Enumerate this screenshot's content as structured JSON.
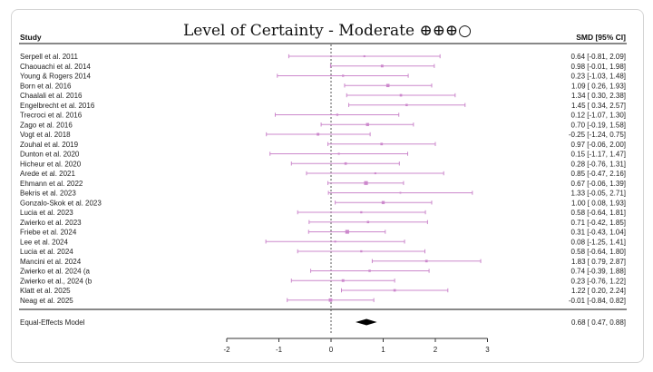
{
  "chart_data": {
    "type": "forest",
    "title": "Level of Certainty - Moderate ⊕⊕⊕○",
    "column_headers": {
      "study": "Study",
      "effect": "SMD [95% CI]"
    },
    "xlim": [
      -2,
      3
    ],
    "x_ticks": [
      -2,
      -1,
      0,
      1,
      2,
      3
    ],
    "reference_line": 0,
    "colors": {
      "marker": "#cc88cc",
      "axis": "#333333",
      "summary": "#000000"
    },
    "studies": [
      {
        "label": "Serpell et al. 2011",
        "smd": 0.64,
        "lower": -0.81,
        "upper": 2.09,
        "ci_text": "0.64 [-0.81, 2.09]",
        "weight": 1.0
      },
      {
        "label": "Chaouachi et al. 2014",
        "smd": 0.98,
        "lower": -0.01,
        "upper": 1.98,
        "ci_text": "0.98 [-0.01, 1.98]",
        "weight": 1.4
      },
      {
        "label": "Young & Rogers 2014",
        "smd": 0.23,
        "lower": -1.03,
        "upper": 1.48,
        "ci_text": "0.23 [-1.03, 1.48]",
        "weight": 1.1
      },
      {
        "label": "Born et al. 2016",
        "smd": 1.09,
        "lower": 0.26,
        "upper": 1.93,
        "ci_text": "1.09 [ 0.26, 1.93]",
        "weight": 1.7
      },
      {
        "label": "Chaalali et al. 2016",
        "smd": 1.34,
        "lower": 0.3,
        "upper": 2.38,
        "ci_text": "1.34 [ 0.30, 2.38]",
        "weight": 1.3
      },
      {
        "label": "Engelbrecht et al. 2016",
        "smd": 1.45,
        "lower": 0.34,
        "upper": 2.57,
        "ci_text": "1.45 [ 0.34, 2.57]",
        "weight": 1.2
      },
      {
        "label": "Trecroci et al. 2016",
        "smd": 0.12,
        "lower": -1.07,
        "upper": 1.3,
        "ci_text": "0.12 [-1.07, 1.30]",
        "weight": 1.1
      },
      {
        "label": "Zago et al. 2016",
        "smd": 0.7,
        "lower": -0.19,
        "upper": 1.58,
        "ci_text": "0.70 [-0.19, 1.58]",
        "weight": 1.6
      },
      {
        "label": "Vogt et al. 2018",
        "smd": -0.25,
        "lower": -1.24,
        "upper": 0.75,
        "ci_text": "-0.25 [-1.24, 0.75]",
        "weight": 1.4
      },
      {
        "label": "Zouhal et al. 2019",
        "smd": 0.97,
        "lower": -0.06,
        "upper": 2.0,
        "ci_text": "0.97 [-0.06, 2.00]",
        "weight": 1.3
      },
      {
        "label": "Dunton et al. 2020",
        "smd": 0.15,
        "lower": -1.17,
        "upper": 1.47,
        "ci_text": "0.15 [-1.17, 1.47]",
        "weight": 1.0
      },
      {
        "label": "Hicheur et al. 2020",
        "smd": 0.28,
        "lower": -0.76,
        "upper": 1.31,
        "ci_text": "0.28 [-0.76, 1.31]",
        "weight": 1.3
      },
      {
        "label": "Arede et al. 2021",
        "smd": 0.85,
        "lower": -0.47,
        "upper": 2.16,
        "ci_text": "0.85 [-0.47, 2.16]",
        "weight": 1.0
      },
      {
        "label": "Ehmann et al. 2022",
        "smd": 0.67,
        "lower": -0.06,
        "upper": 1.39,
        "ci_text": "0.67 [-0.06, 1.39]",
        "weight": 2.0
      },
      {
        "label": "Bekris et al. 2023",
        "smd": 1.33,
        "lower": -0.05,
        "upper": 2.71,
        "ci_text": "1.33 [-0.05, 2.71]",
        "weight": 0.9
      },
      {
        "label": "Gonzalo-Skok et al. 2023",
        "smd": 1.0,
        "lower": 0.08,
        "upper": 1.93,
        "ci_text": "1.00 [ 0.08, 1.93]",
        "weight": 1.6
      },
      {
        "label": "Lucia et al. 2023",
        "smd": 0.58,
        "lower": -0.64,
        "upper": 1.81,
        "ci_text": "0.58 [-0.64, 1.81]",
        "weight": 1.1
      },
      {
        "label": "Zwierko et al. 2023",
        "smd": 0.71,
        "lower": -0.42,
        "upper": 1.85,
        "ci_text": "0.71 [-0.42, 1.85]",
        "weight": 1.2
      },
      {
        "label": "Friebe et al. 2024",
        "smd": 0.31,
        "lower": -0.43,
        "upper": 1.04,
        "ci_text": "0.31 [-0.43, 1.04]",
        "weight": 2.0
      },
      {
        "label": "Lee et al. 2024",
        "smd": 0.08,
        "lower": -1.25,
        "upper": 1.41,
        "ci_text": "0.08 [-1.25, 1.41]",
        "weight": 1.0
      },
      {
        "label": "Lucia et al. 2024",
        "smd": 0.58,
        "lower": -0.64,
        "upper": 1.8,
        "ci_text": "0.58 [-0.64, 1.80]",
        "weight": 1.1
      },
      {
        "label": "Mancini et al. 2024",
        "smd": 1.83,
        "lower": 0.79,
        "upper": 2.87,
        "ci_text": "1.83 [ 0.79, 2.87]",
        "weight": 1.3
      },
      {
        "label": "Zwierko et al. 2024 (a",
        "smd": 0.74,
        "lower": -0.39,
        "upper": 1.88,
        "ci_text": "0.74 [-0.39, 1.88]",
        "weight": 1.2
      },
      {
        "label": "Zwierko et al., 2024 (b",
        "smd": 0.23,
        "lower": -0.76,
        "upper": 1.22,
        "ci_text": "0.23 [-0.76, 1.22]",
        "weight": 1.4
      },
      {
        "label": "Klatt et al. 2025",
        "smd": 1.22,
        "lower": 0.2,
        "upper": 2.24,
        "ci_text": "1.22 [ 0.20, 2.24]",
        "weight": 1.3
      },
      {
        "label": "Neag et al. 2025",
        "smd": -0.01,
        "lower": -0.84,
        "upper": 0.82,
        "ci_text": "-0.01 [-0.84, 0.82]",
        "weight": 1.8
      }
    ],
    "summary": {
      "label": "Equal-Effects Model",
      "smd": 0.68,
      "lower": 0.47,
      "upper": 0.88,
      "ci_text": "0.68 [ 0.47, 0.88]"
    }
  }
}
